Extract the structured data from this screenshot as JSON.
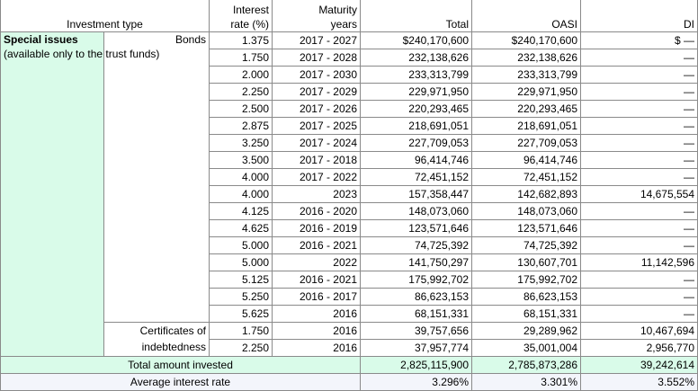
{
  "header": {
    "investment_type": "Investment type",
    "interest_rate": "Interest\nrate (%)",
    "maturity_years": "Maturity\nyears",
    "total": "Total",
    "oasi": "OASI",
    "di": "DI"
  },
  "special_issues": {
    "title": "Special issues",
    "note": "(available only to the trust funds)"
  },
  "bonds_label": "Bonds",
  "certificates_label": "Certificates of indebtedness",
  "bond_rows": [
    {
      "rate": "1.375",
      "years": "2017 - 2027",
      "total": "$240,170,600",
      "oasi": "$240,170,600",
      "di": "$ —"
    },
    {
      "rate": "1.750",
      "years": "2017 - 2028",
      "total": "232,138,626",
      "oasi": "232,138,626",
      "di": "—"
    },
    {
      "rate": "2.000",
      "years": "2017 - 2030",
      "total": "233,313,799",
      "oasi": "233,313,799",
      "di": "—"
    },
    {
      "rate": "2.250",
      "years": "2017 - 2029",
      "total": "229,971,950",
      "oasi": "229,971,950",
      "di": "—"
    },
    {
      "rate": "2.500",
      "years": "2017 - 2026",
      "total": "220,293,465",
      "oasi": "220,293,465",
      "di": "—"
    },
    {
      "rate": "2.875",
      "years": "2017 - 2025",
      "total": "218,691,051",
      "oasi": "218,691,051",
      "di": "—"
    },
    {
      "rate": "3.250",
      "years": "2017 - 2024",
      "total": "227,709,053",
      "oasi": "227,709,053",
      "di": "—"
    },
    {
      "rate": "3.500",
      "years": "2017 - 2018",
      "total": "96,414,746",
      "oasi": "96,414,746",
      "di": "—"
    },
    {
      "rate": "4.000",
      "years": "2017 - 2022",
      "total": "72,451,152",
      "oasi": "72,451,152",
      "di": "—"
    },
    {
      "rate": "4.000",
      "years": "2023",
      "total": "157,358,447",
      "oasi": "142,682,893",
      "di": "14,675,554"
    },
    {
      "rate": "4.125",
      "years": "2016 - 2020",
      "total": "148,073,060",
      "oasi": "148,073,060",
      "di": "—"
    },
    {
      "rate": "4.625",
      "years": "2016 - 2019",
      "total": "123,571,646",
      "oasi": "123,571,646",
      "di": "—"
    },
    {
      "rate": "5.000",
      "years": "2016 - 2021",
      "total": "74,725,392",
      "oasi": "74,725,392",
      "di": "—"
    },
    {
      "rate": "5.000",
      "years": "2022",
      "total": "141,750,297",
      "oasi": "130,607,701",
      "di": "11,142,596"
    },
    {
      "rate": "5.125",
      "years": "2016 - 2021",
      "total": "175,992,702",
      "oasi": "175,992,702",
      "di": "—"
    },
    {
      "rate": "5.250",
      "years": "2016 - 2017",
      "total": "86,623,153",
      "oasi": "86,623,153",
      "di": "—"
    },
    {
      "rate": "5.625",
      "years": "2016",
      "total": "68,151,331",
      "oasi": "68,151,331",
      "di": "—"
    }
  ],
  "cert_rows": [
    {
      "rate": "1.750",
      "years": "2016",
      "total": "39,757,656",
      "oasi": "29,289,962",
      "di": "10,467,694"
    },
    {
      "rate": "2.250",
      "years": "2016",
      "total": "37,957,774",
      "oasi": "35,001,004",
      "di": "2,956,770"
    }
  ],
  "total_row": {
    "label": "Total amount invested",
    "total": "2,825,115,900",
    "oasi": "2,785,873,286",
    "di": "39,242,614"
  },
  "avg_row": {
    "label": "Average interest rate",
    "total": "3.296%",
    "oasi": "3.301%",
    "di": "3.552%"
  }
}
